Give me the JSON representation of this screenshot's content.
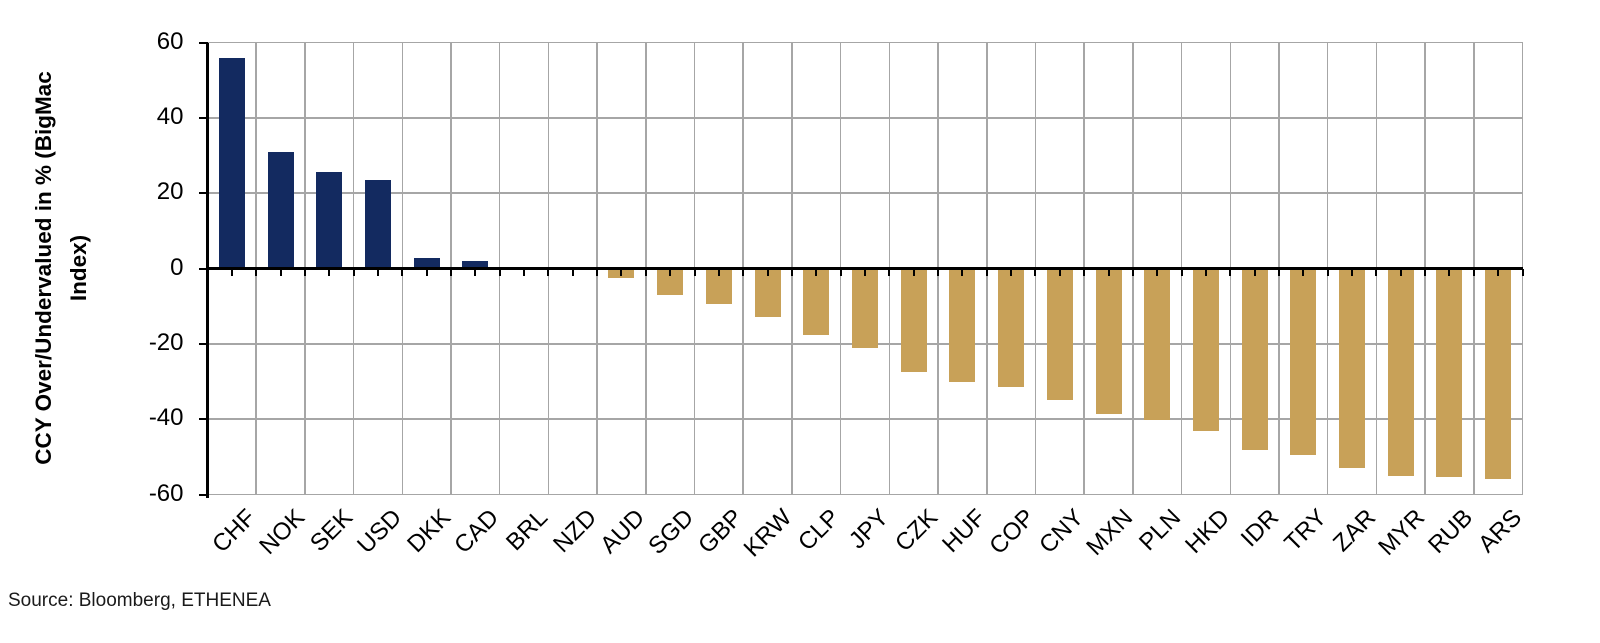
{
  "chart_data": {
    "type": "bar",
    "title": "",
    "ylabel": "CCY Over/Undervalued in % (BigMac Index)",
    "ylabel_lines": [
      "CCY Over/Undervalued in % (BigMac",
      "Index)"
    ],
    "xlabel": "",
    "categories": [
      "CHF",
      "NOK",
      "SEK",
      "USD",
      "DKK",
      "CAD",
      "BRL",
      "NZD",
      "AUD",
      "SGD",
      "GBP",
      "KRW",
      "CLP",
      "JPY",
      "CZK",
      "HUF",
      "COP",
      "CNY",
      "MXN",
      "PLN",
      "HKD",
      "IDR",
      "TRY",
      "ZAR",
      "MYR",
      "RUB",
      "ARS"
    ],
    "values": [
      56,
      31,
      25.5,
      23.5,
      2.7,
      2,
      0,
      0,
      -2.6,
      -7,
      -9.5,
      -13,
      -17.7,
      -21,
      -27.4,
      -30.2,
      -31.4,
      -35,
      -38.5,
      -40.3,
      -43.2,
      -48.3,
      -49.5,
      -53,
      -55,
      -55.3,
      -56
    ],
    "ylim": [
      -60,
      60
    ],
    "yticks": [
      60,
      40,
      20,
      0,
      -20,
      -40,
      -60
    ],
    "grid": true,
    "legend": "none",
    "positive_color": "#132a60",
    "negative_color": "#c8a158",
    "gridline_color": "#a6a6a6",
    "axis_color": "#000000"
  },
  "footer": {
    "source": "Source: Bloomberg, ETHENEA"
  }
}
